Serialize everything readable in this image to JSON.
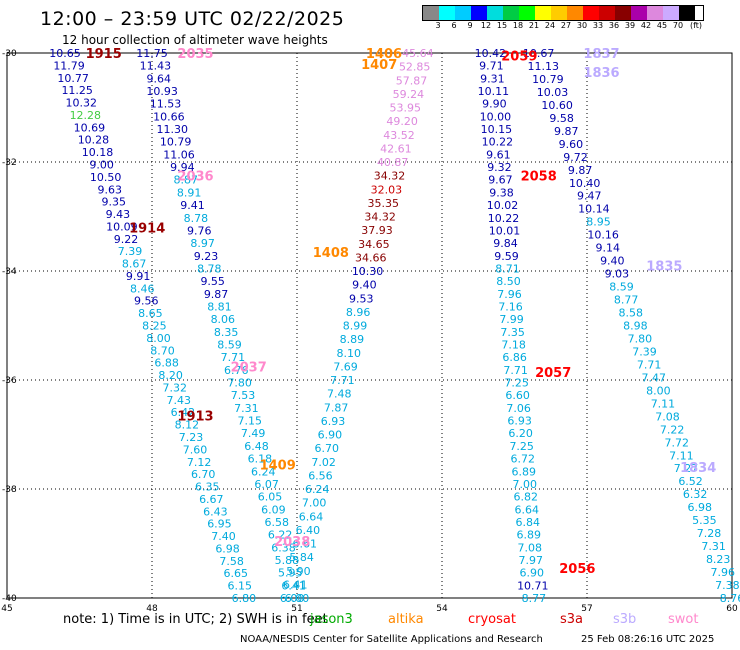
{
  "title": "12:00 – 23:59 UTC 02/22/2025",
  "subtitle": "12 hour collection of altimeter wave heights",
  "scale": {
    "colors": [
      "#888888",
      "#00ffff",
      "#00ccff",
      "#0000ff",
      "#00dddd",
      "#00cc44",
      "#00ff00",
      "#ffff00",
      "#ffcc00",
      "#ff8800",
      "#ff0000",
      "#cc0000",
      "#880000",
      "#aa00aa",
      "#dd88dd",
      "#ccaaff",
      "#000000"
    ],
    "ticks": [
      "3",
      "6",
      "9",
      "12",
      "15",
      "18",
      "21",
      "24",
      "27",
      "30",
      "33",
      "36",
      "39",
      "42",
      "45",
      "70"
    ],
    "unit": "(ft)"
  },
  "axes": {
    "lon_labels": [
      "45",
      "48",
      "51",
      "54",
      "57",
      "60"
    ],
    "lat_labels": [
      "-30",
      "-32",
      "-34",
      "-36",
      "-38",
      "-40"
    ],
    "lon_range": [
      45,
      60
    ],
    "lat_range": [
      -40,
      -30
    ]
  },
  "note": "note:  1) Time is in UTC; 2) SWH is in feet",
  "legend": [
    {
      "label": "jason3",
      "color": "#00aa00"
    },
    {
      "label": "altika",
      "color": "#ff8800"
    },
    {
      "label": "cryosat",
      "color": "#ff0000"
    },
    {
      "label": "s3a",
      "color": "#cc0000"
    },
    {
      "label": "s3b",
      "color": "#bbaaff"
    },
    {
      "label": "swot",
      "color": "#ff88cc"
    }
  ],
  "footer_left": "NOAA/NESDIS Center for Satellite Applications and Research",
  "footer_right": "25 Feb 08:26:16 UTC 2025",
  "pass_labels": [
    {
      "text": "1915",
      "lon": 47.0,
      "lat": -30.0,
      "color": "#990000"
    },
    {
      "text": "2035",
      "lon": 48.9,
      "lat": -30.0,
      "color": "#ff88cc"
    },
    {
      "text": "1406",
      "lon": 52.8,
      "lat": -30.0,
      "color": "#ff8800"
    },
    {
      "text": "1407",
      "lon": 52.7,
      "lat": -30.2,
      "color": "#ff8800"
    },
    {
      "text": "2059",
      "lon": 55.6,
      "lat": -30.05,
      "color": "#ff0000"
    },
    {
      "text": "1837",
      "lon": 57.3,
      "lat": -30.0,
      "color": "#bbaaff"
    },
    {
      "text": "1836",
      "lon": 57.3,
      "lat": -30.35,
      "color": "#bbaaff"
    },
    {
      "text": "2036",
      "lon": 48.9,
      "lat": -32.25,
      "color": "#ff88cc"
    },
    {
      "text": "2058",
      "lon": 56.0,
      "lat": -32.25,
      "color": "#ff0000"
    },
    {
      "text": "1914",
      "lon": 47.9,
      "lat": -33.2,
      "color": "#990000"
    },
    {
      "text": "1408",
      "lon": 51.7,
      "lat": -33.65,
      "color": "#ff8800"
    },
    {
      "text": "1835",
      "lon": 58.6,
      "lat": -33.9,
      "color": "#bbaaff"
    },
    {
      "text": "2037",
      "lon": 50.0,
      "lat": -35.75,
      "color": "#ff88cc"
    },
    {
      "text": "2057",
      "lon": 56.3,
      "lat": -35.85,
      "color": "#ff0000"
    },
    {
      "text": "1913",
      "lon": 48.9,
      "lat": -36.65,
      "color": "#990000"
    },
    {
      "text": "1409",
      "lon": 50.6,
      "lat": -37.55,
      "color": "#ff8800"
    },
    {
      "text": "1834",
      "lon": 59.3,
      "lat": -37.6,
      "color": "#bbaaff"
    },
    {
      "text": "2038",
      "lon": 50.9,
      "lat": -38.95,
      "color": "#ff88cc"
    },
    {
      "text": "2056",
      "lon": 56.8,
      "lat": -39.45,
      "color": "#ff0000"
    }
  ],
  "tracks": [
    {
      "name": "1915",
      "color": "#000099",
      "lon0": 46.2,
      "lon1": 49.9,
      "lat0": -30.0,
      "lat1": -40.0,
      "values": [
        "10.65",
        "11.79",
        "10.77",
        "11.25",
        "10.32",
        "12.28",
        "10.69",
        "10.28",
        "10.18",
        "9.00",
        "10.50",
        "9.63",
        "9.35",
        "9.43",
        "10.09",
        "9.22",
        "7.39",
        "8.67",
        "9.91",
        "8.46",
        "9.56",
        "8.65",
        "8.25",
        "8.00",
        "8.70",
        "6.88",
        "8.20",
        "7.32",
        "7.43",
        "6.42",
        "8.12",
        "7.23",
        "7.60",
        "7.12",
        "6.70",
        "6.35",
        "6.67",
        "6.43",
        "6.95",
        "7.40",
        "6.98",
        "7.58",
        "6.65",
        "6.15",
        "6.80"
      ]
    },
    {
      "name": "2035",
      "color": "#000099",
      "lon0": 48.0,
      "lon1": 51.0,
      "lat0": -30.0,
      "lat1": -40.0,
      "values": [
        "11.75",
        "11.43",
        "9.64",
        "10.93",
        "11.53",
        "10.66",
        "11.30",
        "10.79",
        "11.06",
        "9.94",
        "8.87",
        "8.91",
        "9.41",
        "8.78",
        "9.76",
        "8.97",
        "9.23",
        "8.78",
        "9.55",
        "9.87",
        "8.81",
        "8.06",
        "8.35",
        "8.59",
        "7.71",
        "6.76",
        "7.80",
        "7.53",
        "7.31",
        "7.15",
        "7.49",
        "6.48",
        "6.18",
        "6.24",
        "6.07",
        "6.05",
        "6.09",
        "6.58",
        "6.22",
        "6.38",
        "5.88",
        "5.95",
        "6.41",
        "6.00"
      ]
    },
    {
      "name": "1406",
      "color": "#000099",
      "lon0": 53.5,
      "lon1": 50.9,
      "lat0": -30.0,
      "lat1": -40.0,
      "values": [
        "45.64",
        "52.85",
        "57.87",
        "59.24",
        "53.95",
        "49.20",
        "43.52",
        "42.61",
        "40.87",
        "34.32",
        "32.03",
        "35.35",
        "34.32",
        "37.93",
        "34.65",
        "34.66",
        "10.30",
        "9.40",
        "9.53",
        "8.96",
        "8.99",
        "8.89",
        "8.10",
        "7.69",
        "7.71",
        "7.48",
        "7.87",
        "6.93",
        "6.90",
        "6.70",
        "7.02",
        "6.56",
        "6.24",
        "7.00",
        "6.64",
        "6.40",
        "6.61",
        "5.84",
        "5.90",
        "6.41",
        "6.00"
      ]
    },
    {
      "name": "2059",
      "color": "#000099",
      "lon0": 55.0,
      "lon1": 55.9,
      "lat0": -30.0,
      "lat1": -40.0,
      "values": [
        "10.42",
        "9.71",
        "9.31",
        "10.11",
        "9.90",
        "10.00",
        "10.15",
        "10.22",
        "9.61",
        "9.32",
        "9.67",
        "9.38",
        "10.02",
        "10.22",
        "10.01",
        "9.84",
        "9.59",
        "8.71",
        "8.50",
        "7.96",
        "7.16",
        "7.99",
        "7.35",
        "7.18",
        "6.86",
        "7.71",
        "7.25",
        "6.60",
        "7.06",
        "6.93",
        "6.20",
        "7.25",
        "6.72",
        "6.89",
        "7.00",
        "6.82",
        "6.64",
        "6.84",
        "6.89",
        "7.08",
        "7.97",
        "6.90",
        "10.71",
        "8.77"
      ]
    },
    {
      "name": "1837",
      "color": "#000099",
      "lon0": 56.0,
      "lon1": 60.0,
      "lat0": -30.0,
      "lat1": -40.0,
      "values": [
        "10.67",
        "11.13",
        "10.79",
        "10.03",
        "10.60",
        "9.58",
        "9.87",
        "9.60",
        "9.72",
        "9.87",
        "10.40",
        "9.47",
        "10.14",
        "8.95",
        "10.16",
        "9.14",
        "9.40",
        "9.03",
        "8.59",
        "8.77",
        "8.58",
        "8.98",
        "7.80",
        "7.39",
        "7.71",
        "7.47",
        "8.00",
        "7.11",
        "7.08",
        "7.22",
        "7.72",
        "7.11",
        "7.27",
        "6.52",
        "6.32",
        "6.98",
        "5.35",
        "7.28",
        "7.31",
        "8.23",
        "7.96",
        "7.38",
        "8.76"
      ]
    }
  ]
}
